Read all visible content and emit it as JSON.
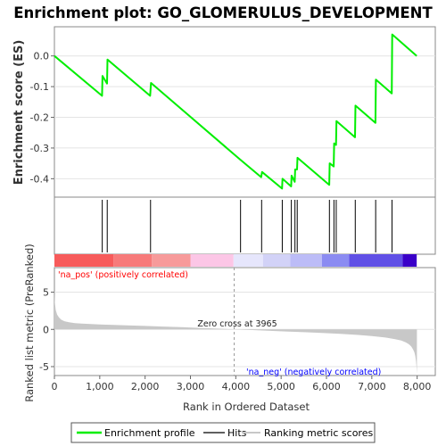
{
  "chart_data": {
    "type": "line",
    "title": "Enrichment plot: GO_GLOMERULUS_DEVELOPMENT",
    "xlabel": "Rank in Ordered Dataset",
    "es_panel": {
      "ylabel": "Enrichment score (ES)",
      "ylim": [
        -0.46,
        0.095
      ],
      "yticks": [
        0.0,
        -0.1,
        -0.2,
        -0.3,
        -0.4
      ],
      "ytick_labels": [
        "0.0",
        "-0.1",
        "-0.2",
        "-0.3",
        "-0.4"
      ],
      "grid": true,
      "profile_color": "#00ee00",
      "x": [
        0,
        1050,
        1060,
        1160,
        1170,
        2110,
        2130,
        4100,
        4560,
        4580,
        5020,
        5030,
        5220,
        5230,
        5300,
        5310,
        5350,
        5360,
        6060,
        6070,
        6160,
        6170,
        6210,
        6220,
        6630,
        6640,
        7080,
        7090,
        7440,
        7450,
        7990
      ],
      "y": [
        0.0,
        -0.13,
        -0.065,
        -0.09,
        -0.012,
        -0.13,
        -0.088,
        -0.338,
        -0.395,
        -0.378,
        -0.432,
        -0.4,
        -0.425,
        -0.39,
        -0.41,
        -0.37,
        -0.37,
        -0.332,
        -0.42,
        -0.35,
        -0.36,
        -0.285,
        -0.29,
        -0.212,
        -0.265,
        -0.162,
        -0.218,
        -0.077,
        -0.122,
        0.07,
        0.0
      ]
    },
    "hits_panel": {
      "positions": [
        1055,
        1165,
        2120,
        4105,
        4570,
        5025,
        5225,
        5305,
        5355,
        6065,
        6165,
        6215,
        6635,
        7085,
        7445
      ]
    },
    "ranking_panel": {
      "ylabel": "Ranked list metric (PreRanked)",
      "ylim": [
        -6.2,
        8.3
      ],
      "yticks": [
        5,
        0,
        -5
      ],
      "ytick_labels": [
        "5",
        "0",
        "-5"
      ],
      "zero_cross": 3965,
      "zero_cross_label": "Zero cross at 3965",
      "pos_label": "'na_pos' (positively correlated)",
      "neg_label": "'na_neg' (negatively correlated)",
      "pos_label_color": "#ff0000",
      "neg_label_color": "#0000ff",
      "fill_color": "#c8c8c8",
      "x": [
        0,
        10,
        30,
        60,
        100,
        150,
        220,
        320,
        450,
        600,
        800,
        1000,
        1300,
        1600,
        2000,
        2400,
        2800,
        3200,
        3600,
        3965,
        4300,
        4700,
        5100,
        5500,
        5900,
        6300,
        6700,
        7000,
        7300,
        7500,
        7650,
        7750,
        7820,
        7870,
        7910,
        7940,
        7960,
        7975,
        7985,
        7995
      ],
      "y": [
        5.3,
        3.6,
        2.6,
        2.0,
        1.6,
        1.3,
        1.1,
        0.95,
        0.85,
        0.78,
        0.72,
        0.66,
        0.6,
        0.54,
        0.46,
        0.38,
        0.3,
        0.2,
        0.1,
        0.0,
        -0.08,
        -0.18,
        -0.28,
        -0.38,
        -0.48,
        -0.6,
        -0.75,
        -0.9,
        -1.1,
        -1.3,
        -1.5,
        -1.75,
        -2.0,
        -2.3,
        -2.7,
        -3.1,
        -3.6,
        -4.3,
        -5.0,
        -6.0
      ]
    },
    "color_bar": {
      "segments": [
        {
          "x0": 0,
          "x1": 1300,
          "color": "#f75b5b"
        },
        {
          "x0": 1300,
          "x1": 2150,
          "color": "#f77a7a"
        },
        {
          "x0": 2150,
          "x1": 3000,
          "color": "#f79a9a"
        },
        {
          "x0": 3000,
          "x1": 3950,
          "color": "#fcc6e6"
        },
        {
          "x0": 3950,
          "x1": 4600,
          "color": "#e6e6fc"
        },
        {
          "x0": 4600,
          "x1": 5200,
          "color": "#d2d2f7"
        },
        {
          "x0": 5200,
          "x1": 5900,
          "color": "#bcbcf7"
        },
        {
          "x0": 5900,
          "x1": 6500,
          "color": "#8b8bf2"
        },
        {
          "x0": 6500,
          "x1": 7680,
          "color": "#6050e6"
        },
        {
          "x0": 7680,
          "x1": 7990,
          "color": "#3a00c8"
        }
      ]
    },
    "x_axis": {
      "xlim": [
        0,
        8400
      ],
      "xticks": [
        0,
        1000,
        2000,
        3000,
        4000,
        5000,
        6000,
        7000,
        8000
      ],
      "xtick_labels": [
        "0",
        "1,000",
        "2,000",
        "3,000",
        "4,000",
        "5,000",
        "6,000",
        "7,000",
        "8,000"
      ]
    },
    "legend": {
      "placement": "bottom",
      "entries": [
        {
          "label": "Enrichment profile",
          "color": "#00ee00"
        },
        {
          "label": "Hits",
          "color": "#606060"
        },
        {
          "label": "Ranking metric scores",
          "color": "#c8c8c8"
        }
      ]
    }
  }
}
